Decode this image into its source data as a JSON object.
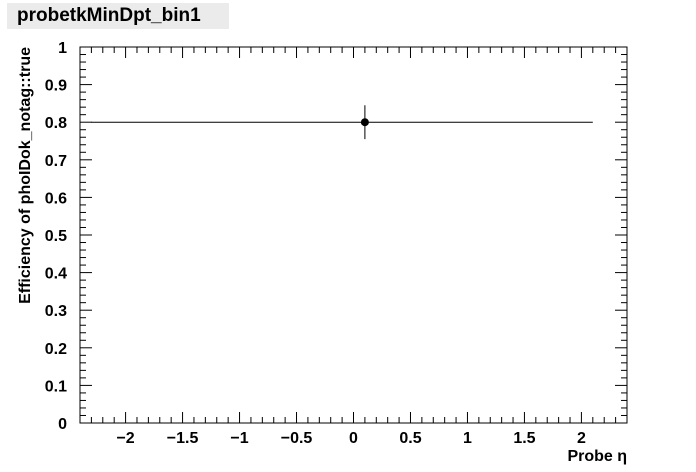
{
  "chart_data": {
    "type": "scatter",
    "title": "probetkMinDpt_bin1",
    "xlabel": "Probe η",
    "ylabel": "Efficiency of phoIDok_notag::true",
    "xlim": [
      -2.4,
      2.4
    ],
    "ylim": [
      0,
      1
    ],
    "x_ticks": [
      -2,
      -1.5,
      -1,
      -0.5,
      0,
      0.5,
      1,
      1.5,
      2
    ],
    "x_tick_labels": [
      "−2",
      "−1.5",
      "−1",
      "−0.5",
      "0",
      "0.5",
      "1",
      "1.5",
      "2"
    ],
    "y_ticks": [
      0,
      0.1,
      0.2,
      0.3,
      0.4,
      0.5,
      0.6,
      0.7,
      0.8,
      0.9,
      1
    ],
    "y_tick_labels": [
      "0",
      "0.1",
      "0.2",
      "0.3",
      "0.4",
      "0.5",
      "0.6",
      "0.7",
      "0.8",
      "0.9",
      "1"
    ],
    "grid": false,
    "legend": "none",
    "marker_color": "#000000",
    "series": [
      {
        "points": [
          {
            "x": 0.1,
            "y": 0.8,
            "xerr": [
              2.4,
              2.0
            ],
            "yerr": [
              0.045,
              0.045
            ]
          }
        ]
      }
    ]
  }
}
